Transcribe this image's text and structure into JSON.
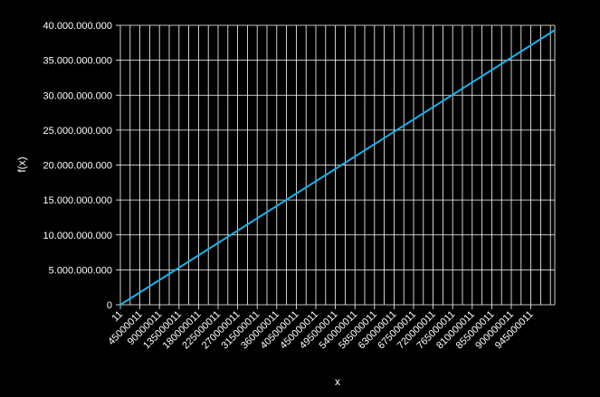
{
  "colors": {
    "background": "#000000",
    "grid": "#ffffff",
    "line": "#1fb0e8",
    "text": "#ffffff"
  },
  "chart_data": {
    "type": "line",
    "xlabel": "x",
    "ylabel": "f(x)",
    "xlim": [
      11,
      1000000000
    ],
    "ylim": [
      0,
      40000000000
    ],
    "grid": true,
    "legend": "none",
    "x_ticks": [
      "11",
      "45000011",
      "90000011",
      "135000011",
      "180000011",
      "225000011",
      "270000011",
      "315000011",
      "360000011",
      "405000011",
      "450000011",
      "495000011",
      "540000011",
      "585000011",
      "630000011",
      "675000011",
      "720000011",
      "765000011",
      "810000011",
      "855000011",
      "900000011",
      "945000011"
    ],
    "y_ticks": [
      "0",
      "5.000.000.000",
      "10.000.000.000",
      "15.000.000.000",
      "20.000.000.000",
      "25.000.000.000",
      "30.000.000.000",
      "35.000.000.000",
      "40.000.000.000"
    ],
    "series": [
      {
        "x": [
          11,
          1000000000
        ],
        "y": [
          0,
          39300000000
        ]
      }
    ]
  }
}
